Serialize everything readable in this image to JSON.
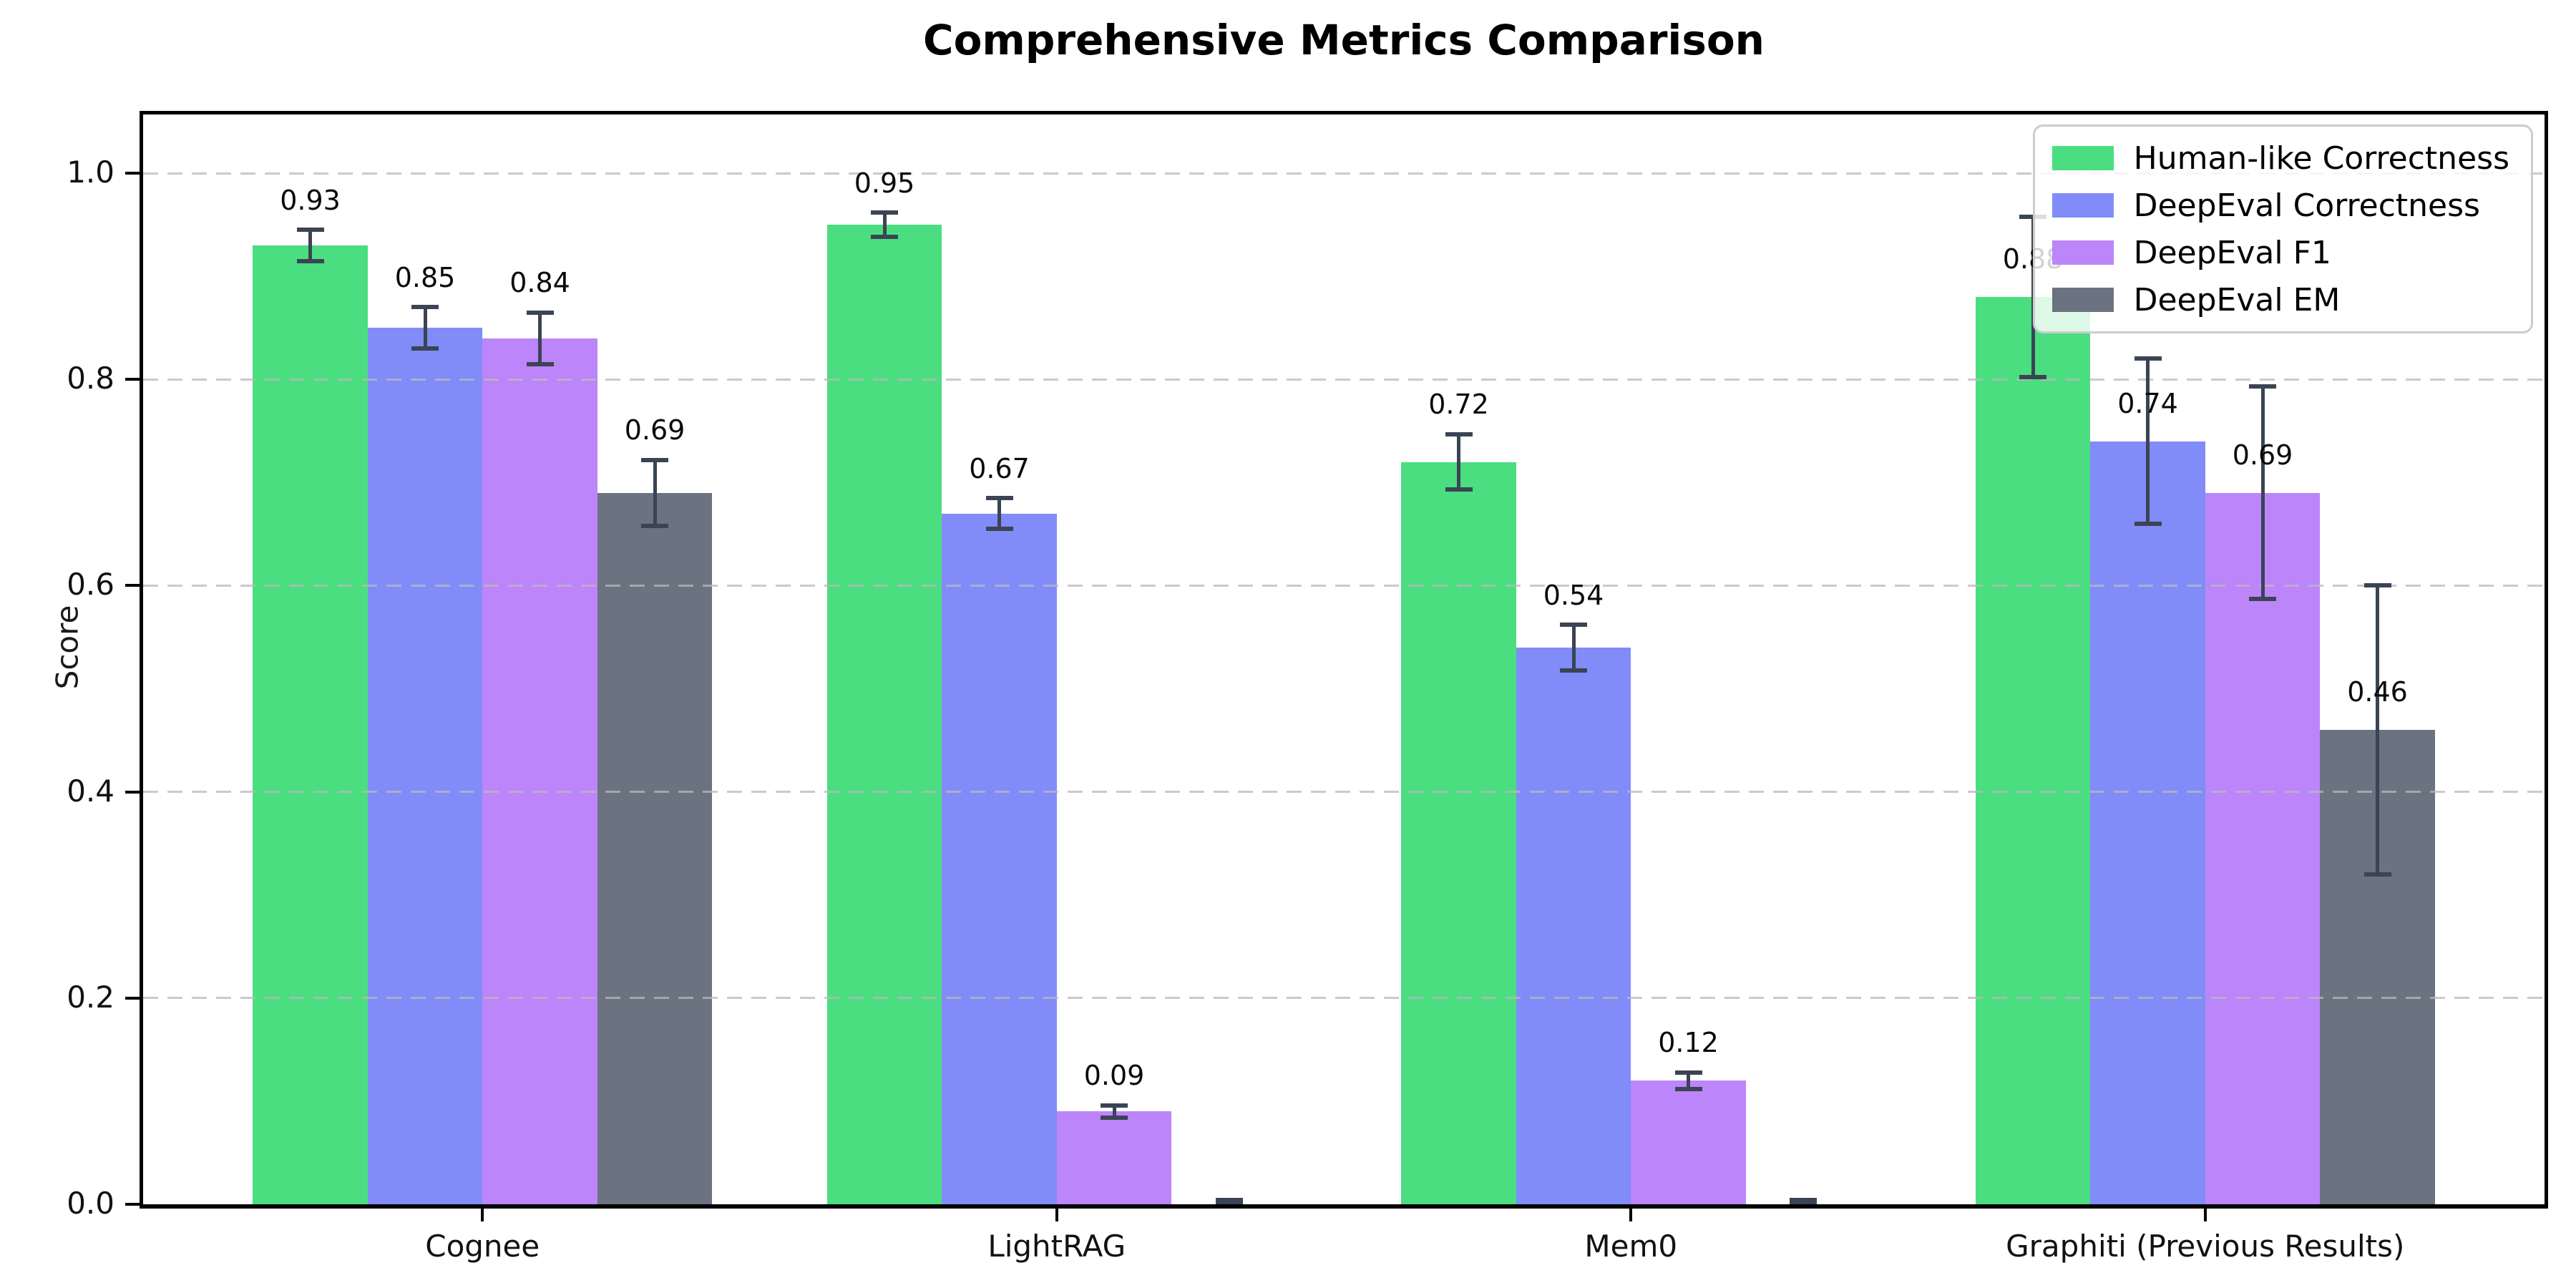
{
  "chart_data": {
    "type": "bar",
    "title": "Comprehensive Metrics Comparison",
    "ylabel": "Score",
    "xlabel": "",
    "categories": [
      "Cognee",
      "LightRAG",
      "Mem0",
      "Graphiti (Previous Results)"
    ],
    "series": [
      {
        "name": "Human-like Correctness",
        "color": "#4ade80",
        "values": [
          0.93,
          0.95,
          0.72,
          0.88
        ],
        "errors": [
          0.015,
          0.012,
          0.027,
          0.078
        ],
        "bar_labels": [
          "0.93",
          "0.95",
          "0.72",
          "0.88"
        ]
      },
      {
        "name": "DeepEval Correctness",
        "color": "#818cf8",
        "values": [
          0.85,
          0.67,
          0.54,
          0.74
        ],
        "errors": [
          0.02,
          0.015,
          0.022,
          0.08
        ],
        "bar_labels": [
          "0.85",
          "0.67",
          "0.54",
          "0.74"
        ]
      },
      {
        "name": "DeepEval F1",
        "color": "#bc85fa",
        "values": [
          0.84,
          0.09,
          0.12,
          0.69
        ],
        "errors": [
          0.025,
          0.006,
          0.008,
          0.103
        ],
        "bar_labels": [
          "0.84",
          "0.09",
          "0.12",
          "0.69"
        ]
      },
      {
        "name": "DeepEval EM",
        "color": "#6b7280",
        "values": [
          0.69,
          0.0,
          0.0,
          0.46
        ],
        "errors": [
          0.032,
          0.004,
          0.004,
          0.14
        ],
        "bar_labels": [
          "0.69",
          "",
          "",
          "0.46"
        ]
      }
    ],
    "ytick_labels": [
      "0.0",
      "0.2",
      "0.4",
      "0.6",
      "0.8",
      "1.0"
    ],
    "yticks": [
      0.0,
      0.2,
      0.4,
      0.6,
      0.8,
      1.0
    ],
    "ylim": [
      0,
      1.057
    ],
    "grid": "horizontal-dashed",
    "legend_position": "upper right",
    "error_bar_color": "#3a4454"
  }
}
